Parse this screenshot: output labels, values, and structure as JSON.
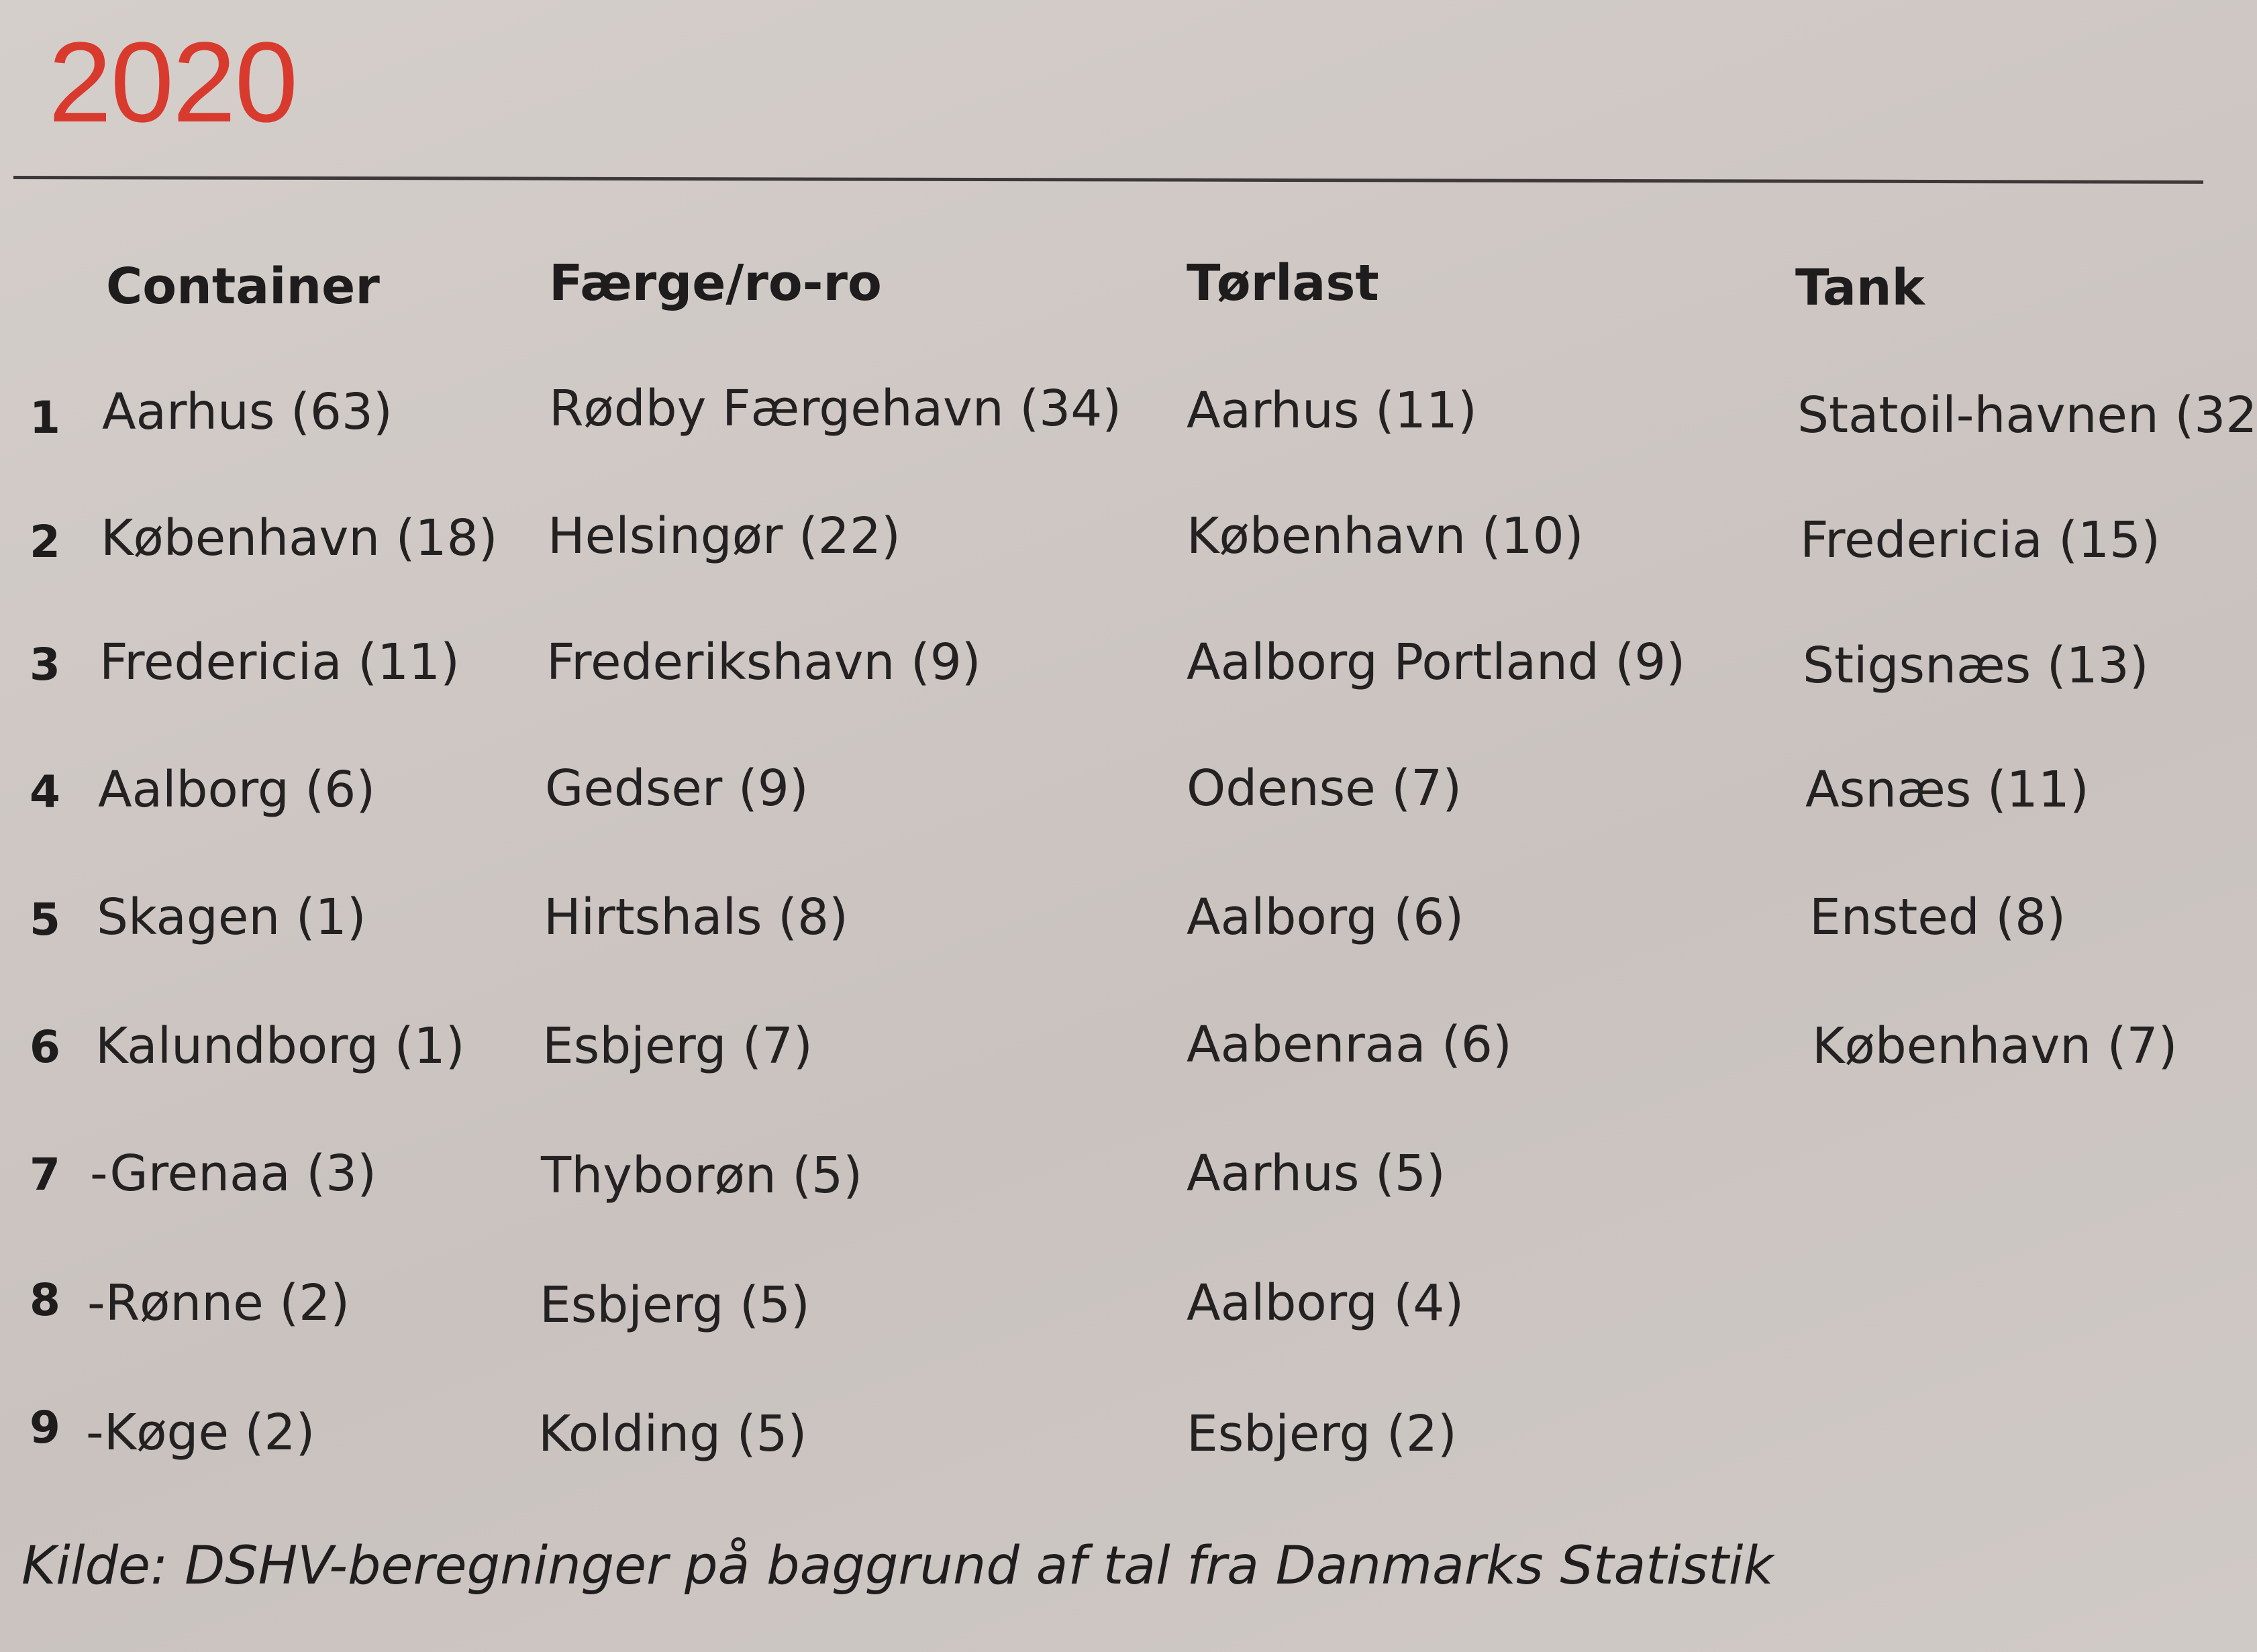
{
  "year": "2020",
  "accent_color": "#d83a2e",
  "columns": [
    "Container",
    "Færge/ro-ro",
    "Tørlast",
    "Tank"
  ],
  "ranks": [
    "1",
    "2",
    "3",
    "4",
    "5",
    "6",
    "7",
    "8",
    "9"
  ],
  "rows": [
    [
      "Aarhus (63)",
      "Rødby Færgehavn (34)",
      "Aarhus (11)",
      "Statoil-havnen (32"
    ],
    [
      "København (18)",
      "Helsingør (22)",
      "København (10)",
      "Fredericia (15)"
    ],
    [
      "Fredericia (11)",
      "Frederikshavn (9)",
      "Aalborg Portland (9)",
      "Stigsnæs (13)"
    ],
    [
      "Aalborg (6)",
      "Gedser (9)",
      "Odense (7)",
      "Asnæs (11)"
    ],
    [
      "Skagen (1)",
      "Hirtshals (8)",
      "Aalborg (6)",
      "Ensted (8)"
    ],
    [
      "Kalundborg (1)",
      "Esbjerg (7)",
      "Aabenraa (6)",
      "København (7)"
    ],
    [
      "-Grenaa (3)",
      "Thyborøn (5)",
      "Aarhus (5)",
      ""
    ],
    [
      "-Rønne (2)",
      "Esbjerg  (5)",
      "Aalborg (4)",
      ""
    ],
    [
      "-Køge (2)",
      "Kolding (5)",
      "Esbjerg (2)",
      ""
    ]
  ],
  "source": "Kilde: DSHV-beregninger på baggrund af tal fra Danmarks Statistik"
}
